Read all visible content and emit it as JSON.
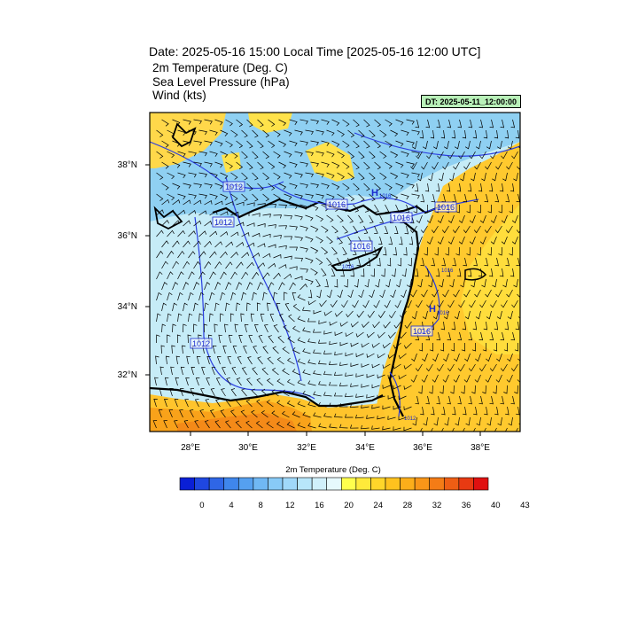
{
  "header": {
    "title": "Date: 2025-05-16  15:00 Local Time [2025-05-16  12:00 UTC]",
    "line1": "2m Temperature (Deg. C)",
    "line2": "Sea Level Pressure   (hPa)",
    "line3": "Wind   (kts)",
    "dt_label": "DT: 2025-05-11_12:00:00"
  },
  "map": {
    "lon_ticks": [
      "28°E",
      "30°E",
      "32°E",
      "34°E",
      "36°E",
      "38°E"
    ],
    "lat_ticks": [
      "38°N",
      "36°N",
      "34°N",
      "32°N"
    ],
    "isobar_labels": [
      "1012",
      "1012",
      "1016",
      "1016",
      "1016",
      "1016",
      "1016",
      "1012",
      "1016"
    ],
    "small_labels": [
      "1016",
      "1016",
      "1016",
      "1016",
      "1012"
    ],
    "pressure_marks": [
      "H",
      "H"
    ]
  },
  "colorbar": {
    "title": "2m Temperature (Deg. C)",
    "tick_labels": [
      "0",
      "4",
      "8",
      "12",
      "16",
      "20",
      "24",
      "28",
      "32",
      "36",
      "40",
      "43"
    ],
    "colors": [
      "#0a1fd6",
      "#1f47e0",
      "#2f66e6",
      "#3f86ec",
      "#55a0f0",
      "#70b8f4",
      "#88caf7",
      "#a0d8f9",
      "#b8e6fa",
      "#d0f0fb",
      "#e6f9fd",
      "#ffff4d",
      "#ffea3a",
      "#ffd62a",
      "#ffc21e",
      "#fcae1a",
      "#f99618",
      "#f47c16",
      "#ef5e14",
      "#e83a12",
      "#e01010"
    ]
  }
}
